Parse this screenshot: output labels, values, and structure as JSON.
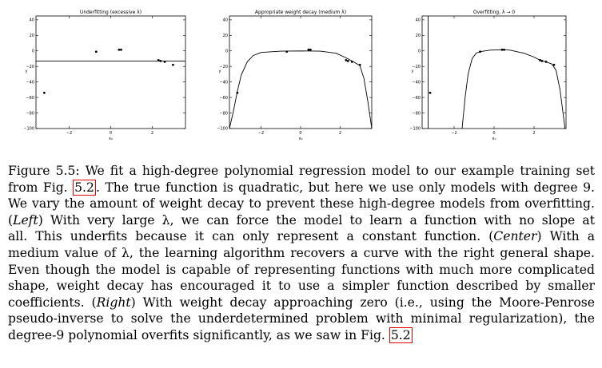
{
  "figure": {
    "panels": [
      {
        "title": "Underfitting (excessive λ)",
        "ylabel": "y",
        "xlabel": "x₀",
        "yticks": [
          "40",
          "20",
          "0",
          "−20",
          "−40",
          "−60",
          "−80",
          "−100"
        ],
        "xticks": [
          "−2",
          "0",
          "2"
        ]
      },
      {
        "title": "Appropriate weight decay (medium λ)",
        "ylabel": "y",
        "xlabel": "x₀",
        "yticks": [
          "40",
          "20",
          "0",
          "−20",
          "−40",
          "−60",
          "−80",
          "−100"
        ],
        "xticks": [
          "−2",
          "0",
          "2"
        ]
      },
      {
        "title": "Overfitting, λ → 0",
        "ylabel": "y",
        "xlabel": "x₀",
        "yticks": [
          "40",
          "20",
          "0",
          "−20",
          "−40",
          "−60",
          "−80",
          "−100"
        ],
        "xticks": [
          "−2",
          "0",
          "2"
        ]
      }
    ]
  },
  "chart_data": [
    {
      "type": "scatter",
      "title": "Underfitting (excessive λ)",
      "xlabel": "x₀",
      "ylabel": "y",
      "xlim": [
        -3.6,
        3.6
      ],
      "ylim": [
        -100,
        45
      ],
      "points": [
        [
          -3.2,
          -54
        ],
        [
          -0.7,
          -1
        ],
        [
          0.4,
          1.5
        ],
        [
          0.5,
          1.5
        ],
        [
          2.3,
          -12
        ],
        [
          2.4,
          -13
        ],
        [
          2.6,
          -14
        ],
        [
          3.0,
          -18
        ]
      ],
      "fit_line": {
        "type": "constant",
        "y": -13
      }
    },
    {
      "type": "scatter",
      "title": "Appropriate weight decay (medium λ)",
      "xlabel": "x₀",
      "ylabel": "y",
      "xlim": [
        -3.6,
        3.6
      ],
      "ylim": [
        -100,
        45
      ],
      "points": [
        [
          -3.2,
          -54
        ],
        [
          -0.7,
          -1
        ],
        [
          0.4,
          1.5
        ],
        [
          0.5,
          1.5
        ],
        [
          2.3,
          -12
        ],
        [
          2.4,
          -13
        ],
        [
          2.6,
          -14
        ],
        [
          3.0,
          -18
        ]
      ],
      "fit_curve": [
        [
          -3.6,
          -100
        ],
        [
          -3.4,
          -78
        ],
        [
          -3.2,
          -52
        ],
        [
          -3.0,
          -31
        ],
        [
          -2.7,
          -14
        ],
        [
          -2.4,
          -6
        ],
        [
          -2.0,
          -2
        ],
        [
          -1.0,
          -0.3
        ],
        [
          0.0,
          0
        ],
        [
          1.0,
          -0.3
        ],
        [
          1.8,
          -3
        ],
        [
          2.3,
          -9
        ],
        [
          2.6,
          -13
        ],
        [
          3.0,
          -19
        ],
        [
          3.2,
          -35
        ],
        [
          3.4,
          -65
        ],
        [
          3.6,
          -100
        ]
      ]
    },
    {
      "type": "scatter",
      "title": "Overfitting, λ → 0",
      "xlabel": "x₀",
      "ylabel": "y",
      "xlim": [
        -3.6,
        3.6
      ],
      "ylim": [
        -100,
        45
      ],
      "points": [
        [
          -3.2,
          -54
        ],
        [
          -0.7,
          -1
        ],
        [
          0.4,
          1.5
        ],
        [
          0.5,
          1.5
        ],
        [
          2.3,
          -12
        ],
        [
          2.4,
          -13
        ],
        [
          2.6,
          -14
        ],
        [
          3.0,
          -18
        ]
      ],
      "fit_curve": [
        [
          -3.3,
          -100
        ],
        [
          -3.3,
          45
        ]
      ],
      "fit_curve_2": [
        [
          -1.6,
          -100
        ],
        [
          -1.45,
          -60
        ],
        [
          -1.3,
          -30
        ],
        [
          -1.1,
          -10
        ],
        [
          -0.9,
          -3
        ],
        [
          -0.7,
          -1
        ],
        [
          -0.2,
          1
        ],
        [
          0.4,
          1.5
        ],
        [
          0.8,
          1
        ],
        [
          1.5,
          -3
        ],
        [
          2.0,
          -8
        ],
        [
          2.3,
          -12
        ],
        [
          2.6,
          -14
        ],
        [
          2.9,
          -17
        ],
        [
          3.1,
          -25
        ],
        [
          3.3,
          -50
        ],
        [
          3.5,
          -90
        ],
        [
          3.55,
          -100
        ]
      ]
    }
  ],
  "caption": {
    "lines": [
      [
        "Figure 5.5: We fit a high-degree polynomial regression model to our example training set"
      ],
      [
        "from Fig. ",
        {
          "ref": "5.2"
        },
        ". The true function is quadratic, but here we use only models with degree 9."
      ],
      [
        "We vary the amount of weight decay to prevent these high-degree models from overfitting."
      ],
      [
        "(",
        {
          "it": "Left"
        },
        ") With very large λ, we can force the model to learn a function with no slope at"
      ],
      [
        "all.  This underfits because it can only represent a constant function.  (",
        {
          "it": "Center"
        },
        ") With a"
      ],
      [
        "medium value of λ, the learning algorithm recovers a curve with the right general shape."
      ],
      [
        "Even though the model is capable of representing functions with much more complicated"
      ],
      [
        "shape, weight decay has encouraged it to use a simpler function described by smaller"
      ],
      [
        "coefficients.  (",
        {
          "it": "Right"
        },
        ") With weight decay approaching zero (i.e., using the Moore-Penrose"
      ],
      [
        "pseudo-inverse to solve the underdetermined problem with minimal regularization), the"
      ],
      [
        "degree-9 polynomial overfits significantly, as we saw in Fig. ",
        {
          "ref": "5.2"
        }
      ]
    ]
  }
}
